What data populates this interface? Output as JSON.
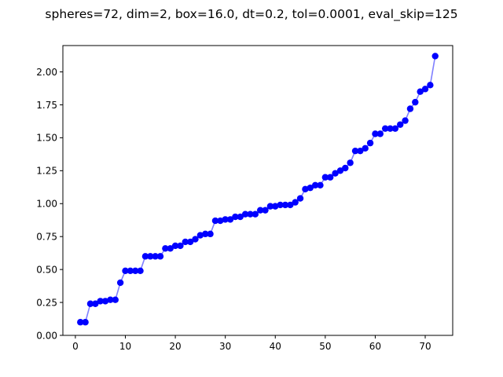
{
  "chart_data": {
    "type": "line",
    "title": "spheres=72, dim=2, box=16.0, dt=0.2, tol=0.0001, eval_skip=125",
    "xlabel": "",
    "ylabel": "",
    "xlim": [
      -2.5,
      75.5
    ],
    "ylim": [
      0,
      2.2
    ],
    "x_ticks": [
      0,
      10,
      20,
      30,
      40,
      50,
      60,
      70
    ],
    "y_ticks": [
      0.0,
      0.25,
      0.5,
      0.75,
      1.0,
      1.25,
      1.5,
      1.75,
      2.0
    ],
    "y_tick_labels": [
      "0.00",
      "0.25",
      "0.50",
      "0.75",
      "1.00",
      "1.25",
      "1.50",
      "1.75",
      "2.00"
    ],
    "grid": false,
    "series": [
      {
        "color": "#0000ff",
        "line_color": "#7f7fff",
        "marker": "circle",
        "x": [
          1,
          2,
          3,
          4,
          5,
          6,
          7,
          8,
          9,
          10,
          11,
          12,
          13,
          14,
          15,
          16,
          17,
          18,
          19,
          20,
          21,
          22,
          23,
          24,
          25,
          26,
          27,
          28,
          29,
          30,
          31,
          32,
          33,
          34,
          35,
          36,
          37,
          38,
          39,
          40,
          41,
          42,
          43,
          44,
          45,
          46,
          47,
          48,
          49,
          50,
          51,
          52,
          53,
          54,
          55,
          56,
          57,
          58,
          59,
          60,
          61,
          62,
          63,
          64,
          65,
          66,
          67,
          68,
          69,
          70,
          71,
          72
        ],
        "values": [
          0.1,
          0.1,
          0.24,
          0.24,
          0.26,
          0.26,
          0.27,
          0.27,
          0.4,
          0.49,
          0.49,
          0.49,
          0.49,
          0.6,
          0.6,
          0.6,
          0.6,
          0.66,
          0.66,
          0.68,
          0.68,
          0.71,
          0.71,
          0.73,
          0.76,
          0.77,
          0.77,
          0.87,
          0.87,
          0.88,
          0.88,
          0.9,
          0.9,
          0.92,
          0.92,
          0.92,
          0.95,
          0.95,
          0.98,
          0.98,
          0.99,
          0.99,
          0.99,
          1.01,
          1.04,
          1.11,
          1.12,
          1.14,
          1.14,
          1.2,
          1.2,
          1.23,
          1.25,
          1.27,
          1.31,
          1.4,
          1.4,
          1.42,
          1.46,
          1.53,
          1.53,
          1.57,
          1.57,
          1.57,
          1.6,
          1.63,
          1.72,
          1.77,
          1.85,
          1.87,
          1.9,
          2.12
        ]
      }
    ]
  }
}
